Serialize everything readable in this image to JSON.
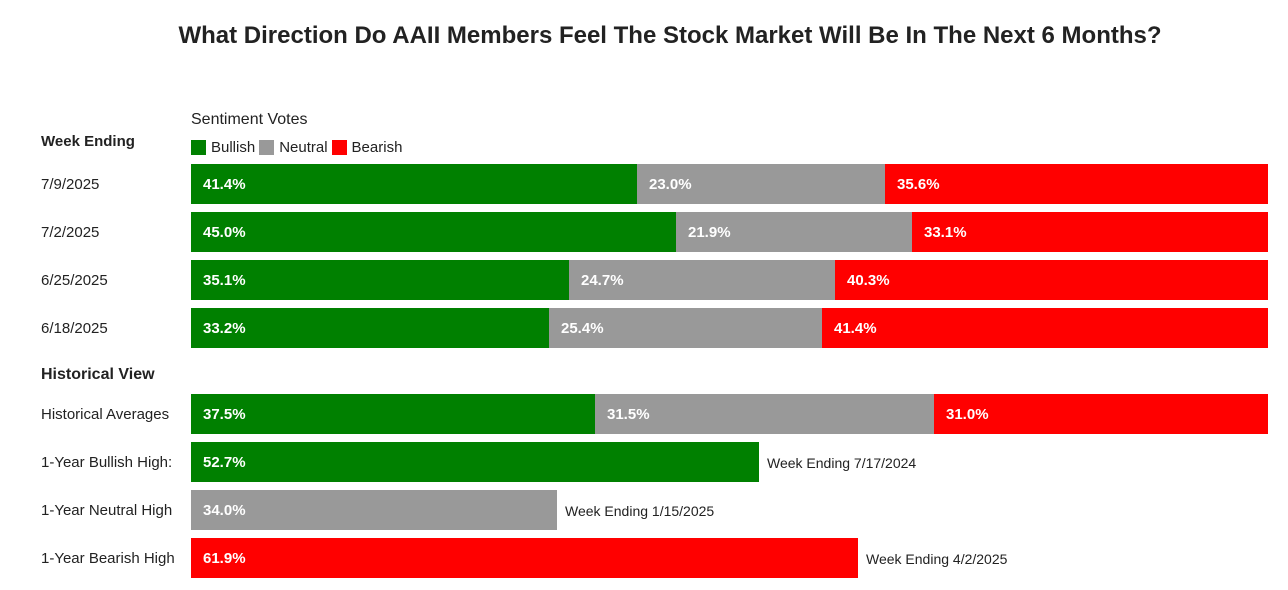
{
  "title": "What Direction Do AAII Members Feel The Stock Market Will Be In The Next 6 Months?",
  "headers": {
    "week_ending": "Week Ending",
    "sentiment_votes": "Sentiment Votes",
    "historical_view": "Historical View"
  },
  "legend": [
    {
      "label": "Bullish",
      "color": "#008000"
    },
    {
      "label": "Neutral",
      "color": "#999999"
    },
    {
      "label": "Bearish",
      "color": "#ff0000"
    }
  ],
  "chart_data": {
    "type": "bar",
    "stacked": true,
    "title": "What Direction Do AAII Members Feel The Stock Market Will Be In The Next 6 Months?",
    "categories": [
      "7/9/2025",
      "7/2/2025",
      "6/25/2025",
      "6/18/2025",
      "Historical Averages"
    ],
    "series": [
      {
        "name": "Bullish",
        "color": "#008000",
        "values": [
          41.4,
          45.0,
          35.1,
          33.2,
          37.5
        ],
        "labels": [
          "41.4%",
          "45.0%",
          "35.1%",
          "33.2%",
          "37.5%"
        ]
      },
      {
        "name": "Neutral",
        "color": "#999999",
        "values": [
          23.0,
          21.9,
          24.7,
          25.4,
          31.5
        ],
        "labels": [
          "23.0%",
          "21.9%",
          "24.7%",
          "25.4%",
          "31.5%"
        ]
      },
      {
        "name": "Bearish",
        "color": "#ff0000",
        "values": [
          35.6,
          33.1,
          40.3,
          41.4,
          31.0
        ],
        "labels": [
          "35.6%",
          "33.1%",
          "40.3%",
          "41.4%",
          "31.0%"
        ]
      }
    ],
    "highs": [
      {
        "label": "1-Year Bullish High:",
        "value": 52.7,
        "value_label": "52.7%",
        "color": "#008000",
        "note": "Week Ending 7/17/2024"
      },
      {
        "label": "1-Year Neutral High",
        "value": 34.0,
        "value_label": "34.0%",
        "color": "#999999",
        "note": "Week Ending 1/15/2025"
      },
      {
        "label": "1-Year Bearish High",
        "value": 61.9,
        "value_label": "61.9%",
        "color": "#ff0000",
        "note": "Week Ending 4/2/2025"
      }
    ],
    "xlim": [
      0,
      100
    ]
  }
}
